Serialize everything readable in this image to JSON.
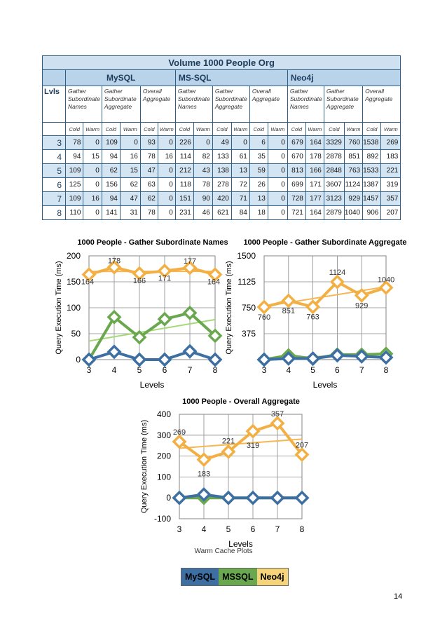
{
  "table": {
    "title": "Volume 1000 People Org",
    "databases": [
      "MySQL",
      "MS-SQL",
      "Neo4j"
    ],
    "lvls_label": "Lvls",
    "operations": [
      "Gather Subordinate Names",
      "Gather Subordinate Aggregate",
      "Overall Aggregate"
    ],
    "cold_label": "Cold",
    "warm_label": "Warm",
    "rows": [
      {
        "lvl": "3",
        "vals": [
          "78",
          "0",
          "109",
          "0",
          "93",
          "0",
          "226",
          "0",
          "49",
          "0",
          "6",
          "0",
          "679",
          "164",
          "3329",
          "760",
          "1538",
          "269"
        ]
      },
      {
        "lvl": "4",
        "vals": [
          "94",
          "15",
          "94",
          "16",
          "78",
          "16",
          "114",
          "82",
          "133",
          "61",
          "35",
          "0",
          "670",
          "178",
          "2878",
          "851",
          "892",
          "183"
        ]
      },
      {
        "lvl": "5",
        "vals": [
          "109",
          "0",
          "62",
          "15",
          "47",
          "0",
          "212",
          "43",
          "138",
          "13",
          "59",
          "0",
          "813",
          "166",
          "2848",
          "763",
          "1533",
          "221"
        ]
      },
      {
        "lvl": "6",
        "vals": [
          "125",
          "0",
          "156",
          "62",
          "63",
          "0",
          "118",
          "78",
          "278",
          "72",
          "26",
          "0",
          "699",
          "171",
          "3607",
          "1124",
          "1387",
          "319"
        ]
      },
      {
        "lvl": "7",
        "vals": [
          "109",
          "16",
          "94",
          "47",
          "62",
          "0",
          "151",
          "90",
          "420",
          "71",
          "13",
          "0",
          "728",
          "177",
          "3123",
          "929",
          "1457",
          "357"
        ]
      },
      {
        "lvl": "8",
        "vals": [
          "110",
          "0",
          "141",
          "31",
          "78",
          "0",
          "231",
          "46",
          "621",
          "84",
          "18",
          "0",
          "721",
          "164",
          "2879",
          "1040",
          "906",
          "207"
        ]
      }
    ]
  },
  "colors": {
    "mysql": "#3d6fa3",
    "mssql": "#6aa84f",
    "neo4j": "#f2b044",
    "trend_mssql": "#a3d977",
    "trend_neo4j": "#f6b651"
  },
  "chart_data": [
    {
      "type": "line",
      "title": "1000 People - Gather Subordinate Names",
      "xlabel": "Levels",
      "ylabel": "Query Execution Time (ms)",
      "x": [
        3,
        4,
        5,
        6,
        7,
        8
      ],
      "ylim": [
        0,
        200
      ],
      "yticks": [
        "0",
        "50",
        "100",
        "150",
        "200"
      ],
      "series": [
        {
          "name": "MySQL",
          "values": [
            0,
            15,
            0,
            0,
            16,
            0
          ]
        },
        {
          "name": "MSSQL",
          "values": [
            0,
            82,
            43,
            78,
            90,
            46
          ]
        },
        {
          "name": "Neo4j",
          "values": [
            164,
            178,
            166,
            171,
            177,
            164
          ]
        }
      ],
      "data_labels": [
        "164",
        "178",
        "166",
        "171",
        "177",
        "164"
      ]
    },
    {
      "type": "line",
      "title": "1000 People - Gather Subordinate Aggregate",
      "xlabel": "Levels",
      "ylabel": "Query Execution Time (ms)",
      "x": [
        3,
        4,
        5,
        6,
        7,
        8
      ],
      "ylim": [
        0,
        1500
      ],
      "yticks": [
        "375",
        "750",
        "1125",
        "1500"
      ],
      "series": [
        {
          "name": "MySQL",
          "values": [
            0,
            16,
            15,
            62,
            47,
            31
          ]
        },
        {
          "name": "MSSQL",
          "values": [
            0,
            61,
            13,
            72,
            71,
            84
          ]
        },
        {
          "name": "Neo4j",
          "values": [
            760,
            851,
            763,
            1124,
            929,
            1040
          ]
        }
      ],
      "data_labels": [
        "760",
        "851",
        "763",
        "1124",
        "929",
        "1040"
      ]
    },
    {
      "type": "line",
      "title": "1000 People - Overall Aggregate",
      "xlabel": "Levels",
      "ylabel": "Query Execution Time (ms)",
      "x": [
        3,
        4,
        5,
        6,
        7,
        8
      ],
      "ylim": [
        -100,
        400
      ],
      "yticks": [
        "-100",
        "0",
        "100",
        "200",
        "300",
        "400"
      ],
      "series": [
        {
          "name": "MySQL",
          "values": [
            0,
            16,
            0,
            0,
            0,
            0
          ]
        },
        {
          "name": "MSSQL",
          "values": [
            0,
            0,
            0,
            0,
            0,
            0
          ]
        },
        {
          "name": "Neo4j",
          "values": [
            269,
            183,
            221,
            319,
            357,
            207
          ]
        }
      ],
      "data_labels": [
        "269",
        "183",
        "221",
        "319",
        "357",
        "207"
      ]
    }
  ],
  "caption": "Warm Cache Plots",
  "legend": [
    "MySQL",
    "MSSQL",
    "Neo4j"
  ],
  "page_number": "14"
}
